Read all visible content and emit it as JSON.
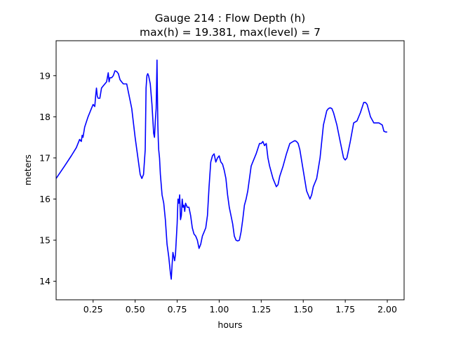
{
  "chart_data": {
    "type": "line",
    "title_line1": "Gauge 214 : Flow Depth (h)",
    "title_line2": "max(h) =  19.381,    max(level) = 7",
    "xlabel": "hours",
    "ylabel": "meters",
    "xlim": [
      0.03,
      2.1
    ],
    "ylim": [
      13.55,
      19.85
    ],
    "x_ticks": [
      0.25,
      0.5,
      0.75,
      1.0,
      1.25,
      1.5,
      1.75,
      2.0
    ],
    "x_tick_labels": [
      "0.25",
      "0.50",
      "0.75",
      "1.00",
      "1.25",
      "1.50",
      "1.75",
      "2.00"
    ],
    "y_ticks": [
      14,
      15,
      16,
      17,
      18,
      19
    ],
    "y_tick_labels": [
      "14",
      "15",
      "16",
      "17",
      "18",
      "19"
    ],
    "grid": false,
    "line_color": "#0000ff",
    "series": [
      {
        "x": [
          0.03,
          0.08,
          0.12,
          0.15,
          0.17,
          0.18,
          0.185,
          0.19,
          0.2,
          0.22,
          0.24,
          0.25,
          0.26,
          0.265,
          0.27,
          0.275,
          0.28,
          0.29,
          0.3,
          0.31,
          0.32,
          0.33,
          0.34,
          0.345,
          0.35,
          0.36,
          0.37,
          0.38,
          0.39,
          0.4,
          0.41,
          0.42,
          0.43,
          0.44,
          0.45,
          0.46,
          0.47,
          0.48,
          0.5,
          0.52,
          0.53,
          0.54,
          0.55,
          0.56,
          0.565,
          0.57,
          0.575,
          0.58,
          0.59,
          0.6,
          0.61,
          0.615,
          0.62,
          0.625,
          0.63,
          0.632,
          0.635,
          0.638,
          0.64,
          0.645,
          0.65,
          0.66,
          0.67,
          0.68,
          0.69,
          0.7,
          0.705,
          0.71,
          0.715,
          0.72,
          0.725,
          0.73,
          0.735,
          0.74,
          0.75,
          0.755,
          0.76,
          0.765,
          0.77,
          0.775,
          0.78,
          0.785,
          0.79,
          0.795,
          0.8,
          0.81,
          0.82,
          0.83,
          0.84,
          0.85,
          0.86,
          0.87,
          0.88,
          0.89,
          0.9,
          0.91,
          0.92,
          0.93,
          0.94,
          0.95,
          0.96,
          0.97,
          0.98,
          0.99,
          1.0,
          1.01,
          1.02,
          1.03,
          1.04,
          1.05,
          1.06,
          1.07,
          1.08,
          1.09,
          1.1,
          1.11,
          1.12,
          1.13,
          1.14,
          1.15,
          1.16,
          1.17,
          1.18,
          1.19,
          1.2,
          1.22,
          1.24,
          1.25,
          1.26,
          1.27,
          1.28,
          1.29,
          1.3,
          1.32,
          1.34,
          1.35,
          1.36,
          1.38,
          1.4,
          1.42,
          1.44,
          1.45,
          1.46,
          1.47,
          1.48,
          1.5,
          1.52,
          1.54,
          1.55,
          1.56,
          1.58,
          1.6,
          1.62,
          1.64,
          1.65,
          1.66,
          1.67,
          1.68,
          1.7,
          1.72,
          1.74,
          1.75,
          1.76,
          1.78,
          1.8,
          1.82,
          1.84,
          1.86,
          1.87,
          1.88,
          1.9,
          1.92,
          1.93,
          1.95,
          1.97,
          1.98,
          1.99,
          2.0
        ],
        "y": [
          16.5,
          16.8,
          17.05,
          17.25,
          17.45,
          17.4,
          17.55,
          17.5,
          17.75,
          18.0,
          18.2,
          18.3,
          18.25,
          18.5,
          18.7,
          18.5,
          18.45,
          18.45,
          18.7,
          18.75,
          18.8,
          18.85,
          19.07,
          18.85,
          18.95,
          18.95,
          19.0,
          19.12,
          19.1,
          19.05,
          18.9,
          18.85,
          18.8,
          18.8,
          18.8,
          18.6,
          18.4,
          18.2,
          17.5,
          16.9,
          16.6,
          16.5,
          16.6,
          17.2,
          18.7,
          19.0,
          19.05,
          19.0,
          18.8,
          18.3,
          17.6,
          17.5,
          17.9,
          18.2,
          19.381,
          18.8,
          17.8,
          17.4,
          17.2,
          17.0,
          16.6,
          16.1,
          15.9,
          15.5,
          14.9,
          14.6,
          14.4,
          14.2,
          14.05,
          14.4,
          14.7,
          14.6,
          14.5,
          14.65,
          15.4,
          16.0,
          15.9,
          16.1,
          15.5,
          15.6,
          16.0,
          15.8,
          15.85,
          15.7,
          15.9,
          15.8,
          15.8,
          15.6,
          15.3,
          15.15,
          15.1,
          15.0,
          14.8,
          14.9,
          15.1,
          15.2,
          15.3,
          15.6,
          16.3,
          16.9,
          17.05,
          17.1,
          16.9,
          17.0,
          17.05,
          16.9,
          16.85,
          16.7,
          16.5,
          16.1,
          15.8,
          15.6,
          15.4,
          15.1,
          15.0,
          14.98,
          15.0,
          15.2,
          15.5,
          15.85,
          16.0,
          16.2,
          16.5,
          16.8,
          16.9,
          17.1,
          17.35,
          17.35,
          17.4,
          17.3,
          17.35,
          17.0,
          16.8,
          16.5,
          16.3,
          16.35,
          16.55,
          16.8,
          17.1,
          17.35,
          17.4,
          17.42,
          17.4,
          17.35,
          17.2,
          16.7,
          16.2,
          16.0,
          16.1,
          16.3,
          16.5,
          17.0,
          17.8,
          18.15,
          18.2,
          18.22,
          18.2,
          18.1,
          17.8,
          17.4,
          17.0,
          16.95,
          17.0,
          17.4,
          17.85,
          17.9,
          18.1,
          18.35,
          18.35,
          18.3,
          18.0,
          17.85,
          17.85,
          17.85,
          17.8,
          17.65,
          17.63,
          17.63
        ]
      }
    ]
  }
}
